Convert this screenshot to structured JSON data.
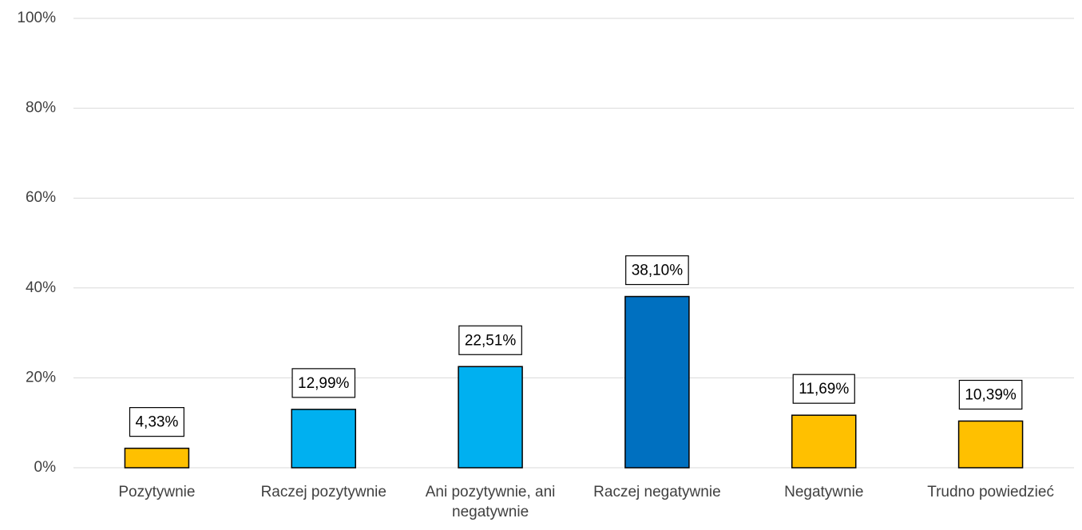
{
  "chart_data": {
    "type": "bar",
    "categories": [
      "Pozytywnie",
      "Raczej pozytywnie",
      "Ani pozytywnie, ani negatywnie",
      "Raczej negatywnie",
      "Negatywnie",
      "Trudno powiedzieć"
    ],
    "values": [
      4.33,
      12.99,
      22.51,
      38.1,
      11.69,
      10.39
    ],
    "value_labels": [
      "4,33%",
      "12,99%",
      "22,51%",
      "38,10%",
      "11,69%",
      "10,39%"
    ],
    "colors": [
      "#FFC000",
      "#00B0F0",
      "#00B0F0",
      "#0070C0",
      "#FFC000",
      "#FFC000"
    ],
    "ylim": [
      0,
      100
    ],
    "yticks": [
      {
        "value": 0,
        "label": "0%"
      },
      {
        "value": 20,
        "label": "20%"
      },
      {
        "value": 40,
        "label": "40%"
      },
      {
        "value": 60,
        "label": "60%"
      },
      {
        "value": 80,
        "label": "80%"
      },
      {
        "value": 100,
        "label": "100%"
      }
    ],
    "grid": true
  }
}
